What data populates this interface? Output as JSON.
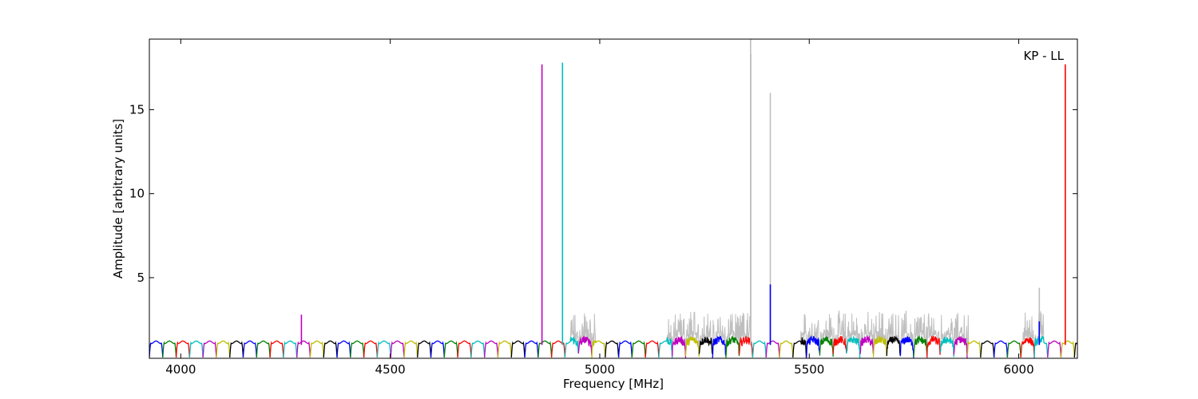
{
  "chart_data": {
    "type": "line",
    "title": "",
    "xlabel": "Frequency [MHz]",
    "ylabel": "Amplitude [arbitrary units]",
    "annotation": "KP - LL",
    "xlim": [
      3925,
      6140
    ],
    "ylim": [
      0.2,
      19.2
    ],
    "xticks": [
      4000,
      4500,
      5000,
      5500,
      6000
    ],
    "xtick_labels": [
      "4000",
      "4500",
      "5000",
      "5500",
      "6000"
    ],
    "yticks": [
      5,
      10,
      15
    ],
    "ytick_labels": [
      "5",
      "10",
      "15"
    ],
    "grid": false,
    "legend": "none",
    "band_start_mhz": 3925,
    "band_width_mhz": 32,
    "band_colors": [
      "#0000ff",
      "#008000",
      "#ff0000",
      "#00bfbf",
      "#bf00bf",
      "#bfbf00",
      "#000000"
    ],
    "background_series": {
      "name": "",
      "color": "#bfbfbf",
      "noisy_ranges": [
        [
          4930,
          4990
        ],
        [
          5160,
          5360
        ],
        [
          5480,
          5880
        ],
        [
          6010,
          6060
        ]
      ]
    },
    "spikes": [
      {
        "x": 4288,
        "y": 2.8,
        "color": "#bf00bf"
      },
      {
        "x": 4862,
        "y": 17.7,
        "color": "#bf00bf"
      },
      {
        "x": 4911,
        "y": 17.8,
        "color": "#00bfbf"
      },
      {
        "x": 5360,
        "y": 18.3,
        "color": "#000000"
      },
      {
        "x": 5360,
        "y": 19.2,
        "color": "#bfbfbf"
      },
      {
        "x": 5407,
        "y": 16.0,
        "color": "#bfbfbf"
      },
      {
        "x": 5407,
        "y": 4.6,
        "color": "#0000ff"
      },
      {
        "x": 6049,
        "y": 4.4,
        "color": "#bfbfbf"
      },
      {
        "x": 6049,
        "y": 2.4,
        "color": "#0000ff"
      },
      {
        "x": 6111,
        "y": 17.7,
        "color": "#ff0000"
      }
    ]
  }
}
